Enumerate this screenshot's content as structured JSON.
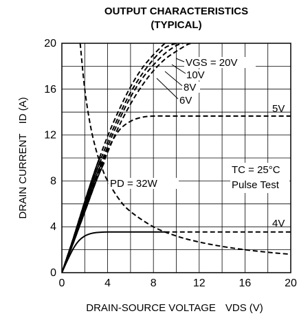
{
  "chart_data": {
    "type": "line",
    "title_line1": "OUTPUT CHARACTERISTICS",
    "title_line2": "(TYPICAL)",
    "xlabel_main": "DRAIN-SOURCE VOLTAGE",
    "xlabel_sym": "VDS",
    "xlabel_unit": "(V)",
    "ylabel_main": "DRAIN CURRENT",
    "ylabel_sym": "ID",
    "ylabel_unit": "(A)",
    "xlim": [
      0,
      20
    ],
    "ylim": [
      0,
      20
    ],
    "x_ticks": [
      0,
      4,
      8,
      12,
      16,
      20
    ],
    "y_ticks": [
      0,
      4,
      8,
      12,
      16,
      20
    ],
    "grid": true,
    "series": [
      {
        "name": "VGS = 20V",
        "line_style": "dashed",
        "points": [
          [
            0,
            0
          ],
          [
            1,
            3
          ],
          [
            2,
            6.2
          ],
          [
            3,
            9.2
          ],
          [
            4,
            11.9
          ],
          [
            5,
            14.2
          ],
          [
            6,
            16.2
          ],
          [
            7,
            17.8
          ],
          [
            8,
            19
          ],
          [
            9,
            20
          ]
        ]
      },
      {
        "name": "10V",
        "line_style": "dashed",
        "points": [
          [
            0,
            0
          ],
          [
            1,
            2.9
          ],
          [
            2,
            5.9
          ],
          [
            3,
            8.8
          ],
          [
            4,
            11.4
          ],
          [
            5,
            13.7
          ],
          [
            6,
            15.7
          ],
          [
            7,
            17.3
          ],
          [
            8,
            18.6
          ],
          [
            9,
            19.6
          ],
          [
            10,
            20
          ]
        ]
      },
      {
        "name": "8V",
        "line_style": "dashed",
        "points": [
          [
            0,
            0
          ],
          [
            1,
            2.8
          ],
          [
            2,
            5.6
          ],
          [
            3,
            8.4
          ],
          [
            4,
            11
          ],
          [
            5,
            13.3
          ],
          [
            6,
            15.3
          ],
          [
            7,
            16.9
          ],
          [
            8,
            18.1
          ],
          [
            9,
            19.1
          ],
          [
            10,
            19.8
          ],
          [
            10.6,
            20
          ]
        ]
      },
      {
        "name": "6V",
        "line_style": "dashed",
        "points": [
          [
            0,
            0
          ],
          [
            1,
            2.6
          ],
          [
            2,
            5.3
          ],
          [
            3,
            8
          ],
          [
            4,
            10.5
          ],
          [
            5,
            12.8
          ],
          [
            6,
            14.7
          ],
          [
            7,
            16.3
          ],
          [
            8,
            17.6
          ],
          [
            9,
            18.6
          ],
          [
            10,
            19.3
          ],
          [
            11,
            19.9
          ],
          [
            11.4,
            20
          ]
        ]
      },
      {
        "name": "5V",
        "line_style": "dashed",
        "points": [
          [
            0,
            0
          ],
          [
            1,
            2.7
          ],
          [
            2,
            5.4
          ],
          [
            3,
            8.2
          ],
          [
            4,
            10.7
          ],
          [
            5,
            12.4
          ],
          [
            6,
            13.2
          ],
          [
            7,
            13.55
          ],
          [
            8,
            13.65
          ],
          [
            10,
            13.65
          ],
          [
            14,
            13.65
          ],
          [
            20,
            13.65
          ]
        ]
      },
      {
        "name": "4V",
        "line_style": "solid",
        "points": [
          [
            0,
            0
          ],
          [
            0.5,
            1.1
          ],
          [
            1,
            2.1
          ],
          [
            1.5,
            2.8
          ],
          [
            2,
            3.2
          ],
          [
            2.5,
            3.4
          ],
          [
            3,
            3.5
          ],
          [
            4,
            3.55
          ],
          [
            6,
            3.55
          ],
          [
            9,
            3.55
          ]
        ]
      },
      {
        "name": "4V",
        "line_style": "dashed",
        "points": [
          [
            9,
            3.55
          ],
          [
            12,
            3.55
          ],
          [
            16,
            3.55
          ],
          [
            20,
            3.55
          ]
        ]
      },
      {
        "name": "PD = 32W",
        "line_style": "dashed",
        "points": [
          [
            1.6,
            20
          ],
          [
            2,
            16
          ],
          [
            2.5,
            12.8
          ],
          [
            3,
            10.67
          ],
          [
            3.5,
            9.14
          ],
          [
            4,
            8
          ],
          [
            5,
            6.4
          ],
          [
            6,
            5.33
          ],
          [
            8,
            4
          ],
          [
            10,
            3.2
          ],
          [
            12,
            2.67
          ],
          [
            14,
            2.29
          ],
          [
            16,
            2
          ],
          [
            18,
            1.78
          ],
          [
            20,
            1.6
          ]
        ]
      },
      {
        "name": "VGS = 20V",
        "line_style": "solid",
        "points": [
          [
            0,
            0
          ],
          [
            1,
            3
          ],
          [
            2,
            6.2
          ],
          [
            3,
            9.2
          ],
          [
            3.37,
            10.1
          ]
        ]
      },
      {
        "name": "10V",
        "line_style": "solid",
        "points": [
          [
            0,
            0
          ],
          [
            1,
            2.9
          ],
          [
            2,
            5.9
          ],
          [
            3,
            8.8
          ],
          [
            3.45,
            9.9
          ]
        ]
      },
      {
        "name": "8V",
        "line_style": "solid",
        "points": [
          [
            0,
            0
          ],
          [
            1,
            2.8
          ],
          [
            2,
            5.6
          ],
          [
            3,
            8.4
          ],
          [
            3.55,
            9.7
          ]
        ]
      },
      {
        "name": "6V",
        "line_style": "solid",
        "points": [
          [
            0,
            0
          ],
          [
            1,
            2.6
          ],
          [
            2,
            5.3
          ],
          [
            3,
            8
          ],
          [
            3.7,
            9.6
          ]
        ]
      }
    ],
    "annotations": {
      "vgs20": "VGS = 20V",
      "v10": "10V",
      "v8": "8V",
      "v6": "6V",
      "v5": "5V",
      "v4": "4V",
      "pd": "PD = 32W",
      "tc": "TC = 25°C",
      "pulse": "Pulse Test"
    }
  }
}
